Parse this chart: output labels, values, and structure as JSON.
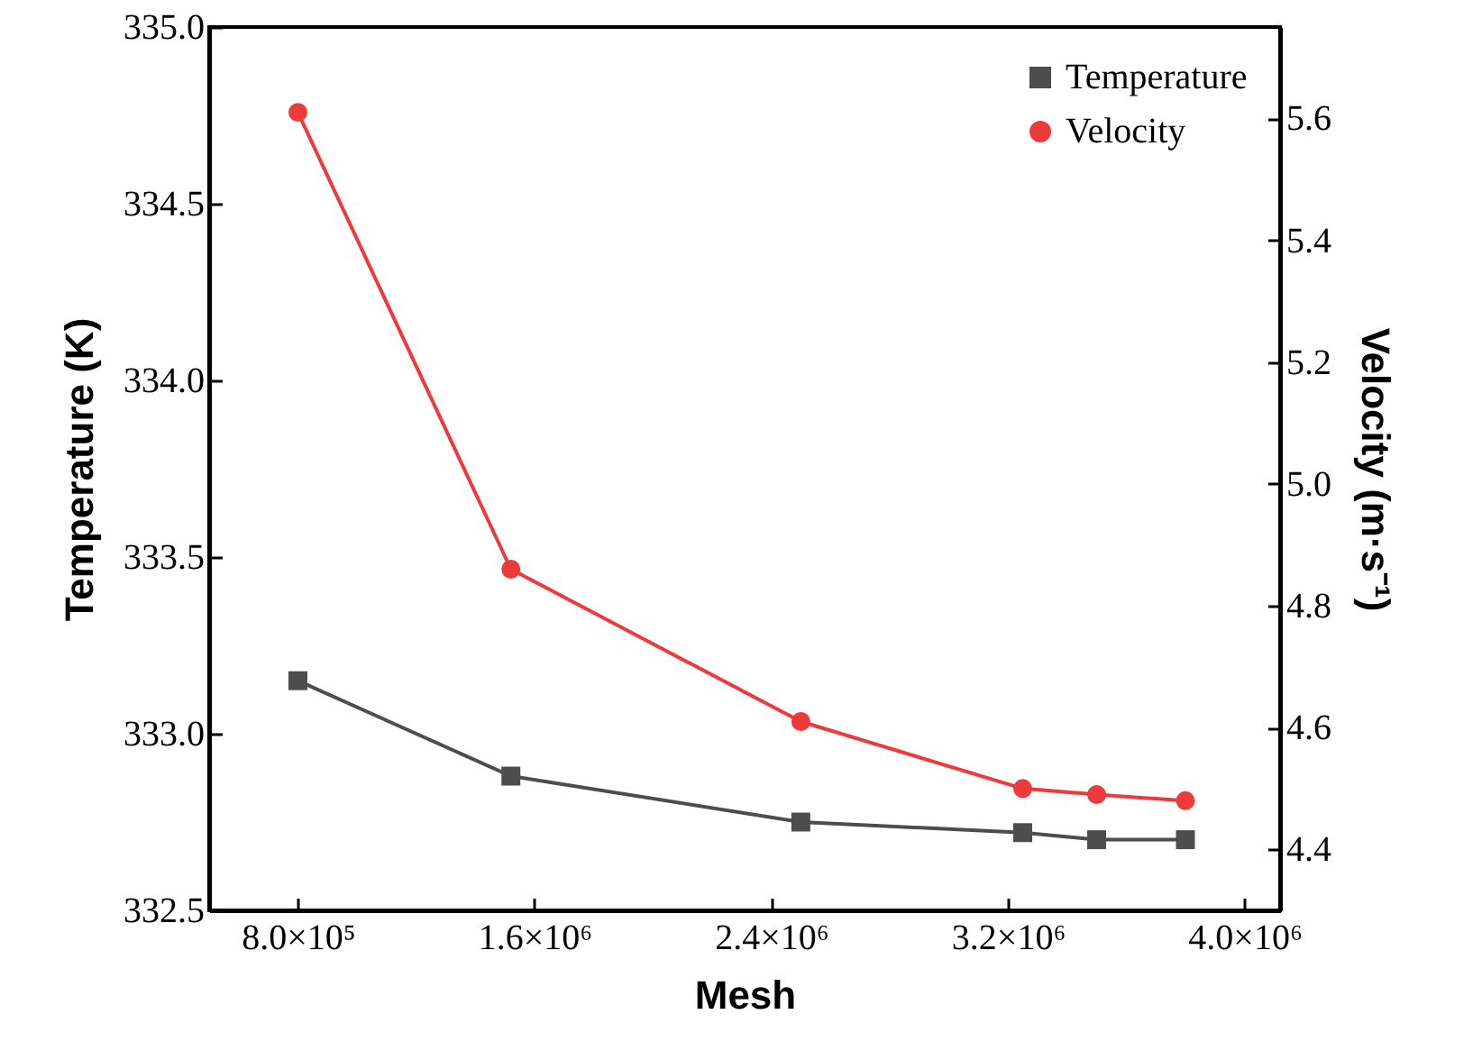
{
  "chart_data": {
    "type": "line",
    "xlabel": "Mesh",
    "ylabel": "Temperature (K)",
    "y2label": "Velocity (m·s⁻¹)",
    "x": [
      800000,
      1520000,
      2500000,
      3250000,
      3500000,
      3800000
    ],
    "series": [
      {
        "name": "Temperature",
        "color": "#4d4d4d",
        "marker": "square",
        "values": [
          333.15,
          332.88,
          332.75,
          332.72,
          332.7,
          332.7
        ]
      },
      {
        "name": "Velocity",
        "color": "#ee3a3a",
        "marker": "circle",
        "axis": "y2",
        "values": [
          5.61,
          4.86,
          4.61,
          4.5,
          4.49,
          4.48
        ]
      }
    ],
    "xlim": [
      500000,
      4120000
    ],
    "xticks": [
      {
        "value": 800000,
        "label": "8.0×10⁵"
      },
      {
        "value": 1600000,
        "label": "1.6×10⁶"
      },
      {
        "value": 2400000,
        "label": "2.4×10⁶"
      },
      {
        "value": 3200000,
        "label": "3.2×10⁶"
      },
      {
        "value": 4000000,
        "label": "4.0×10⁶"
      }
    ],
    "ylim": [
      332.5,
      335.0
    ],
    "yticks": [
      332.5,
      {
        "value": 333,
        "label": "333.0"
      },
      333.5,
      {
        "value": 334,
        "label": "334.0"
      },
      334.5,
      {
        "value": 335,
        "label": "335.0"
      }
    ],
    "y2lim": [
      4.3,
      5.75
    ],
    "y2ticks": [
      4.4,
      4.6,
      4.8,
      {
        "value": 5,
        "label": "5.0"
      },
      5.2,
      5.4,
      5.6
    ],
    "legend": "top right",
    "grid": false,
    "line_style": "solid"
  }
}
